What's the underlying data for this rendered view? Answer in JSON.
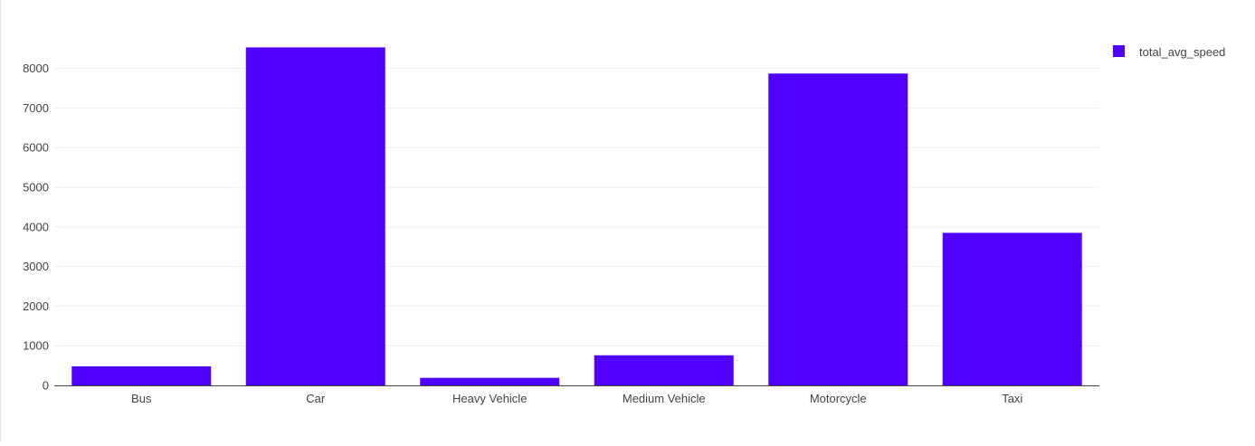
{
  "chart_data": {
    "type": "bar",
    "categories": [
      "Bus",
      "Car",
      "Heavy Vehicle",
      "Medium Vehicle",
      "Motorcycle",
      "Taxi"
    ],
    "series": [
      {
        "name": "total_avg_speed",
        "values": [
          480,
          8530,
          190,
          760,
          7870,
          3850
        ],
        "color": "#5000FF"
      }
    ],
    "ylim": [
      0,
      8950
    ],
    "yticks": [
      0,
      1000,
      2000,
      3000,
      4000,
      5000,
      6000,
      7000,
      8000
    ],
    "grid": true,
    "legend": "top-right"
  }
}
